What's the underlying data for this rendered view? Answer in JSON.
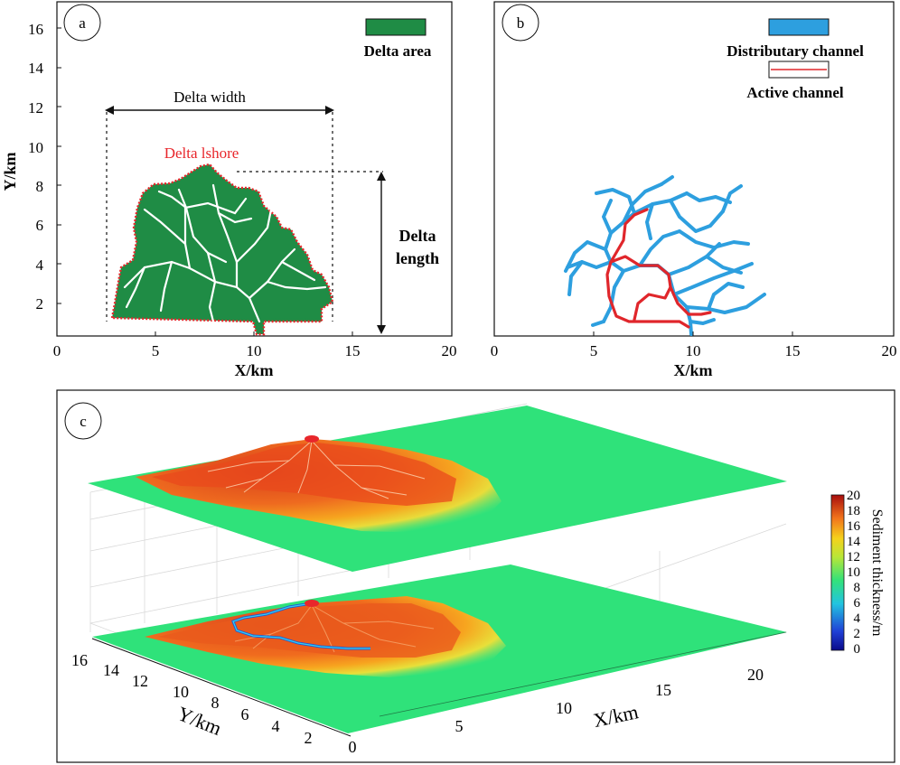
{
  "panel_a": {
    "letter": "a",
    "legend_label": "Delta area",
    "width_label": "Delta width",
    "shore_label": "Delta lshore",
    "length_label_1": "Delta",
    "length_label_2": "length",
    "xlabel": "X/km",
    "ylabel": "Y/km",
    "xticks": [
      "0",
      "5",
      "10",
      "15",
      "20"
    ],
    "yticks": [
      "2",
      "4",
      "6",
      "8",
      "10",
      "12",
      "14",
      "16"
    ]
  },
  "panel_b": {
    "letter": "b",
    "legend_1": "Distributary channel",
    "legend_2": "Active channel",
    "xlabel": "X/km",
    "xticks": [
      "0",
      "5",
      "10",
      "15",
      "20"
    ]
  },
  "panel_c": {
    "letter": "c",
    "xlabel": "X/km",
    "ylabel": "Y/km",
    "xticks": [
      "5",
      "10",
      "15",
      "20"
    ],
    "yticks": [
      "16",
      "14",
      "12",
      "10",
      "8",
      "6",
      "4",
      "2",
      "0"
    ],
    "colorbar_label": "Sediment thickness/m",
    "colorbar_ticks": [
      "20",
      "18",
      "16",
      "14",
      "12",
      "10",
      "8",
      "6",
      "4",
      "2",
      "0"
    ]
  },
  "colors": {
    "delta_green": "#1f8c45",
    "channel_blue": "#2d9fdf",
    "active_red": "#e0262b",
    "surface_green": "#2fe27a",
    "shore_red": "#e8262b"
  }
}
